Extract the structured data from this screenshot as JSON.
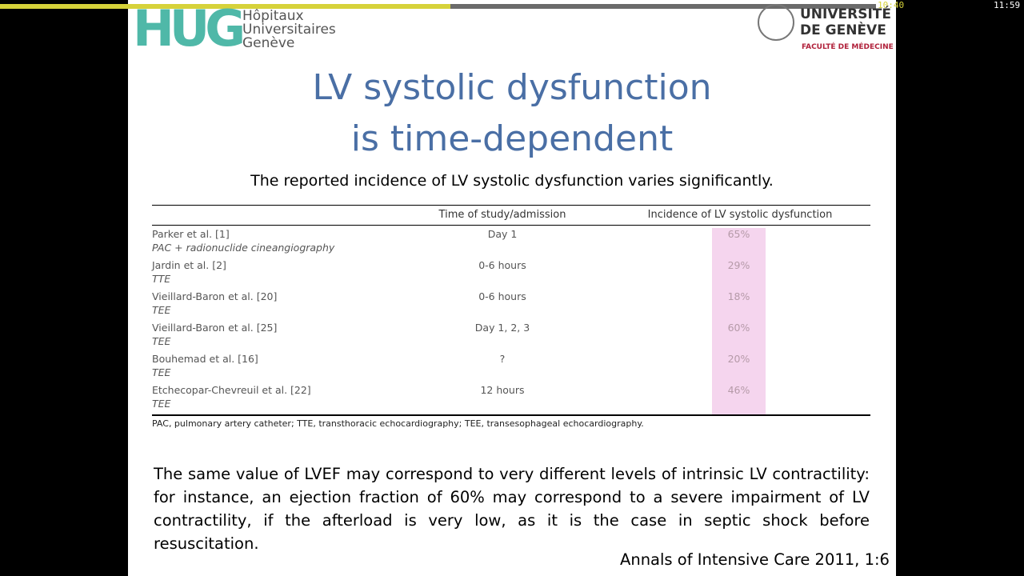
{
  "player": {
    "elapsed": "10:40",
    "duration": "11:59"
  },
  "logos": {
    "hug_mark": "HUG",
    "hug_lines": [
      "Hôpitaux",
      "Universitaires",
      "Genève"
    ],
    "unige_lines": [
      "UNIVERSITÉ",
      "DE GENÈVE"
    ],
    "unige_faculty": "FACULTÉ DE MÉDECINE"
  },
  "slide": {
    "title": [
      "LV systolic dysfunction",
      "is time-dependent"
    ],
    "subtitle": "The reported incidence of LV systolic dysfunction varies significantly.",
    "table": {
      "header": [
        "Time of study/admission",
        "Incidence of LV systolic dysfunction"
      ],
      "rows": [
        [
          "Parker et al. [1]",
          "PAC + radionuclide cineangiography",
          "Day 1",
          "65%"
        ],
        [
          "Jardin et al. [2]",
          "TTE",
          "0-6 hours",
          "29%"
        ],
        [
          "Vieillard-Baron et al. [20]",
          "TEE",
          "0-6 hours",
          "18%"
        ],
        [
          "Vieillard-Baron et al. [25]",
          "TEE",
          "Day 1, 2, 3",
          "60%"
        ],
        [
          "Bouhemad et al. [16]",
          "TEE",
          "?",
          "20%"
        ],
        [
          "Etchecopar-Chevreuil et al. [22]",
          "TEE",
          "12 hours",
          "46%"
        ]
      ],
      "footnote": "PAC, pulmonary artery catheter; TTE, transthoracic echocardiography; TEE, transesophageal echocardiography."
    },
    "paragraph": "The same value of LVEF may correspond to very different levels of intrinsic LV contractility: for instance, an ejection fraction of 60% may correspond to a severe impairment of LV contractility, if the afterload is very low, as it is the case in septic shock before resuscitation.",
    "citation": "Annals of Intensive Care 2011, 1:6"
  }
}
